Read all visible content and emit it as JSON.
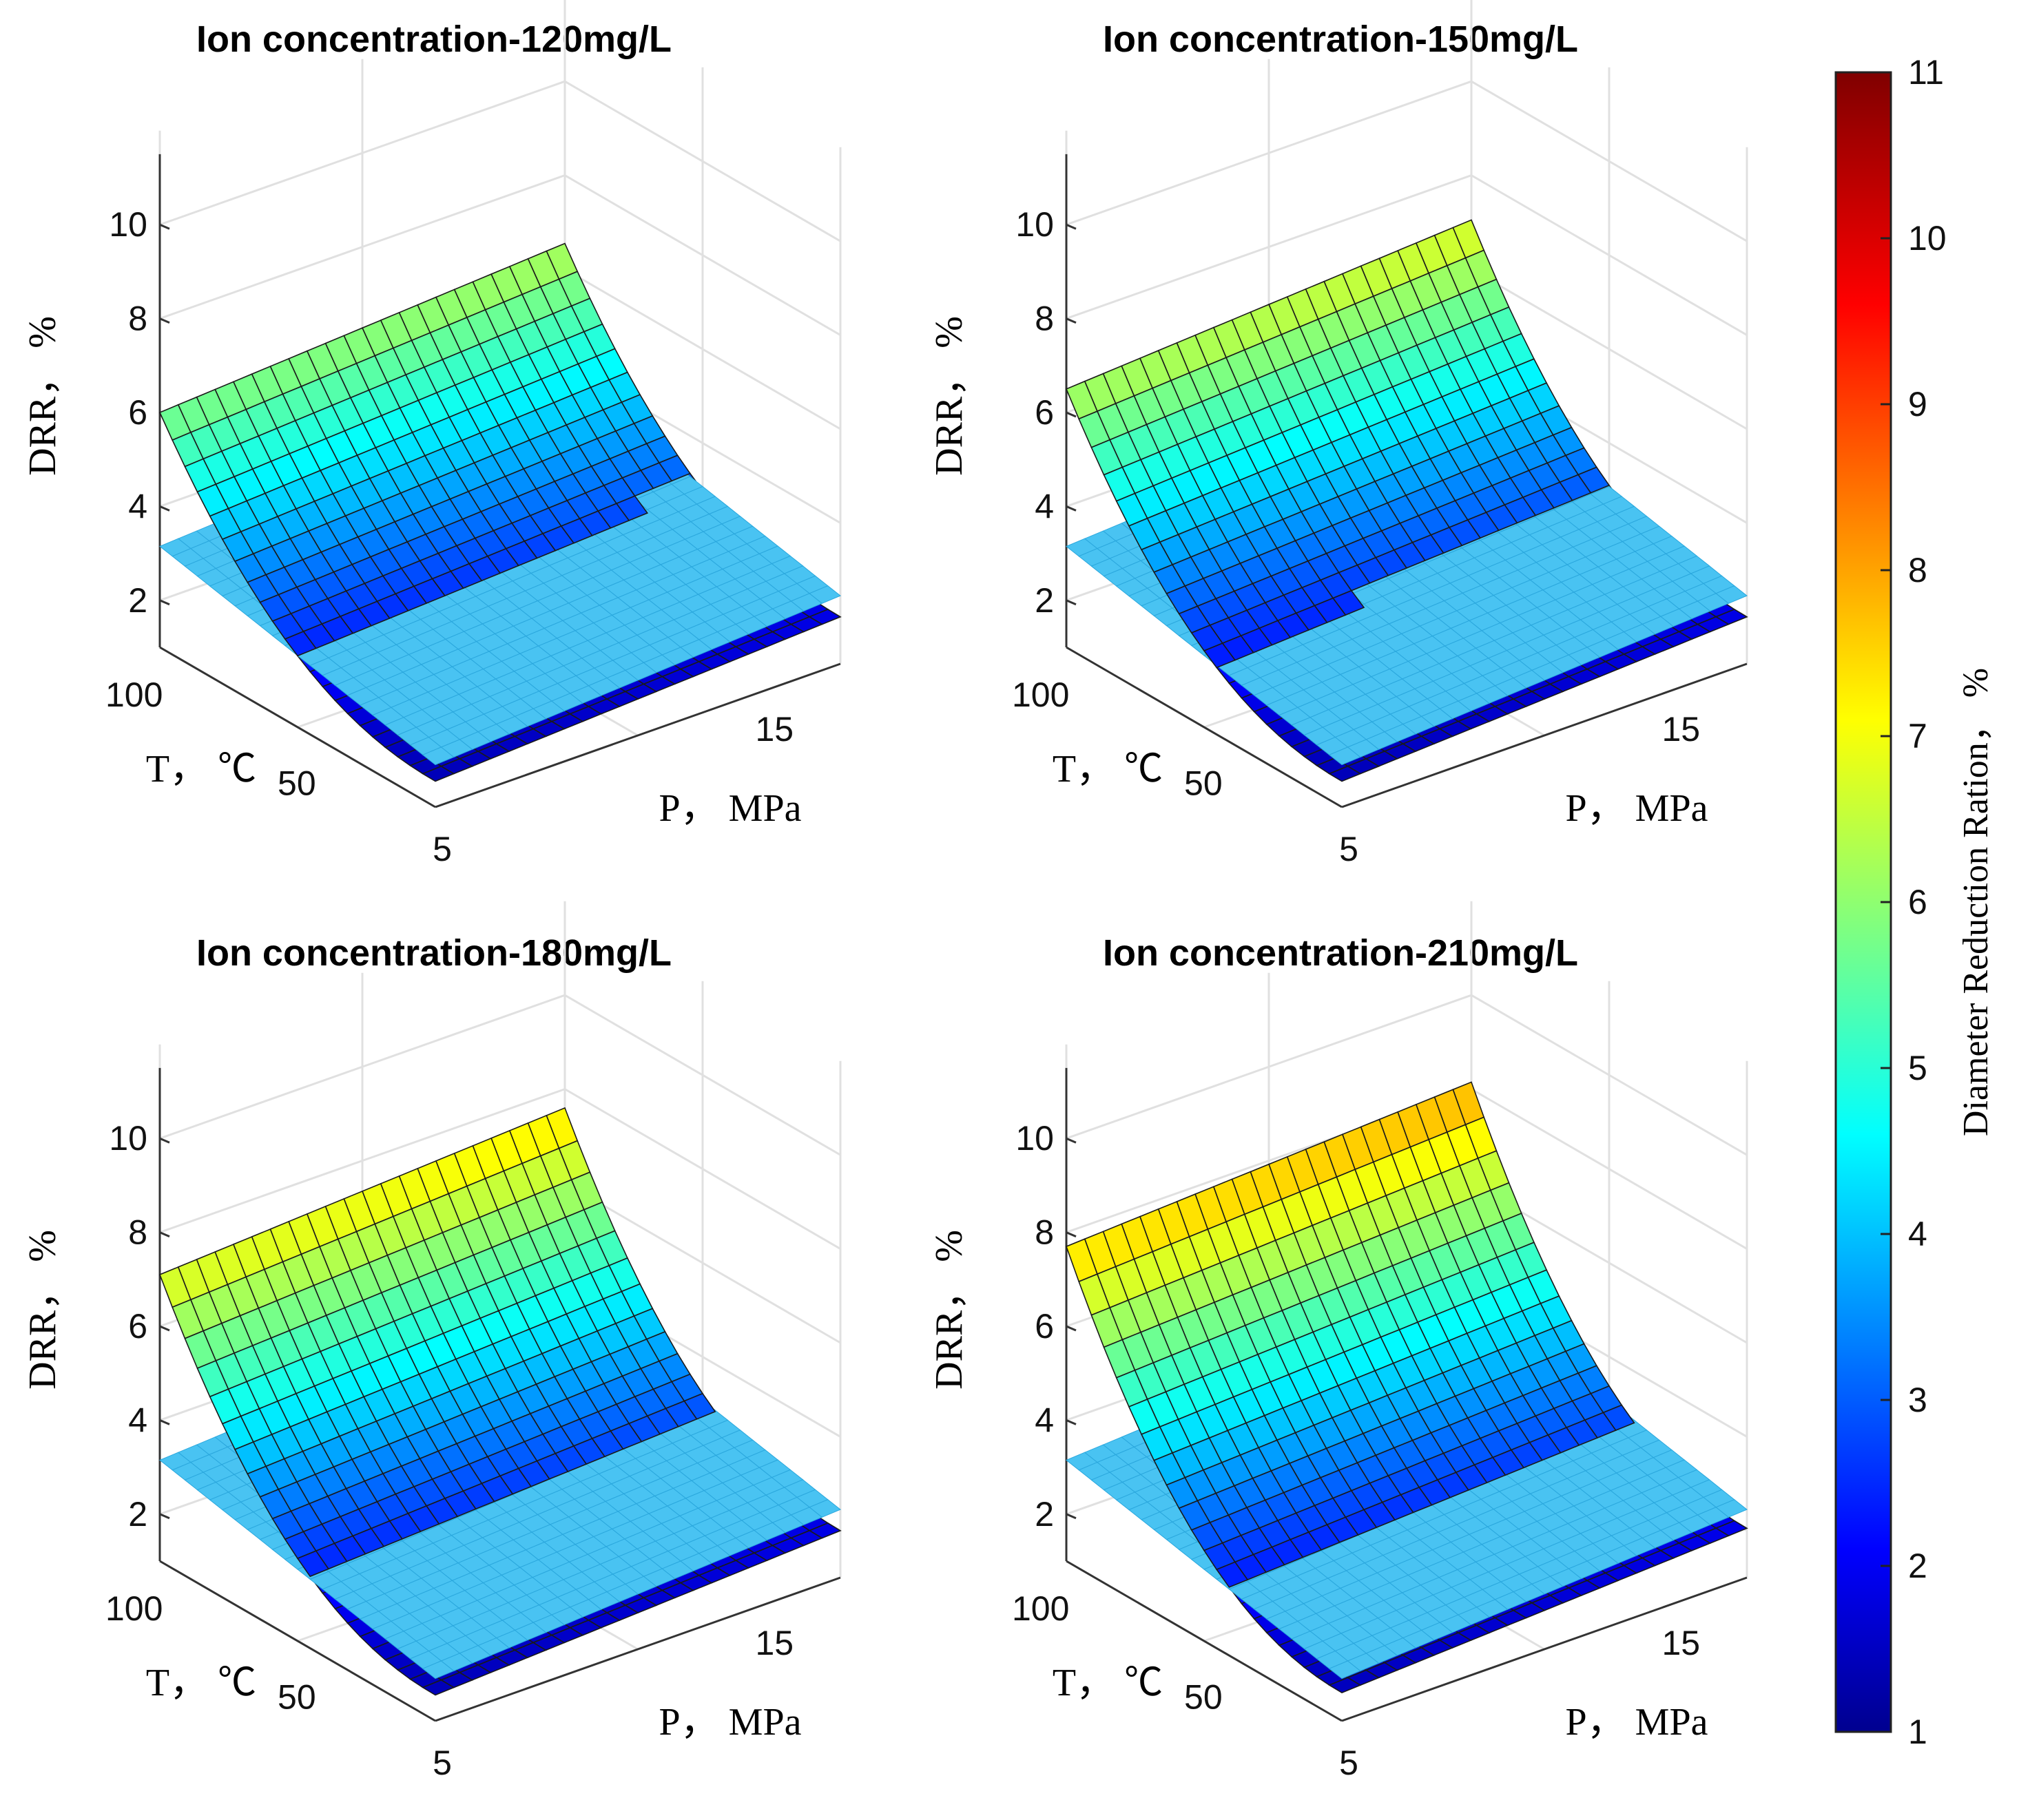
{
  "chart_data": {
    "type": "surface3d",
    "description_axes": {
      "xlabel": "P， MPa",
      "ylabel": "T， ℃",
      "zlabel": "DRR， %",
      "x_ticks": [
        "5",
        "15"
      ],
      "y_ticks": [
        "50",
        "100"
      ],
      "z_ticks": [
        "2",
        "4",
        "6",
        "8",
        "10"
      ],
      "xlim": [
        5,
        18
      ],
      "ylim": [
        20,
        110
      ],
      "zlim": [
        1,
        11
      ]
    },
    "colorbar": {
      "label": "Diameter Reduction Ration， %",
      "range": [
        1,
        11
      ],
      "ticks": [
        "1",
        "2",
        "3",
        "4",
        "5",
        "6",
        "7",
        "8",
        "9",
        "10",
        "11"
      ],
      "colormap": "jet"
    },
    "reference_plane": {
      "name": "threshold plane",
      "color": "#49c3f2",
      "z_at_corners": {
        "P5_T20": 1.9,
        "P5_T110": 3.15,
        "P18_T20": 2.45,
        "P18_T110": 3.7
      }
    },
    "panels": [
      {
        "title": "Ion concentration-120mg/L",
        "surface_corners": {
          "P5_T20": 1.55,
          "P18_T20": 2.0,
          "P5_T110": 6.0,
          "P18_T110": 6.55
        }
      },
      {
        "title": "Ion concentration-150mg/L",
        "surface_corners": {
          "P5_T20": 1.55,
          "P18_T20": 2.0,
          "P5_T110": 6.5,
          "P18_T110": 7.05
        }
      },
      {
        "title": "Ion concentration-180mg/L",
        "surface_corners": {
          "P5_T20": 1.55,
          "P18_T20": 2.0,
          "P5_T110": 7.1,
          "P18_T110": 7.6
        }
      },
      {
        "title": "Ion concentration-210mg/L",
        "surface_corners": {
          "P5_T20": 1.6,
          "P18_T20": 2.05,
          "P5_T110": 7.7,
          "P18_T110": 8.15
        }
      }
    ]
  }
}
